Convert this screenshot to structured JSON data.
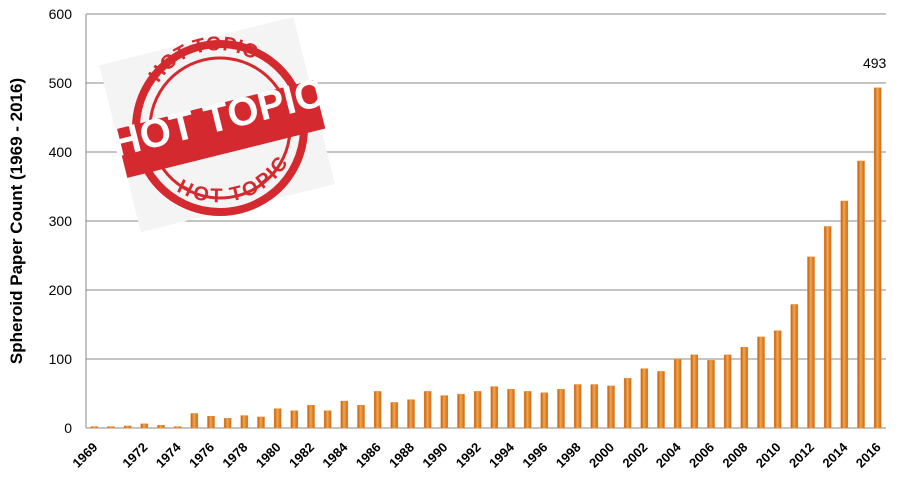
{
  "chart_data": {
    "type": "bar",
    "y_label": "Spheroid Paper Count (1969 - 2016)",
    "categories": [
      "1969",
      null,
      null,
      "1972",
      null,
      "1974",
      null,
      "1976",
      null,
      "1978",
      null,
      "1980",
      null,
      "1982",
      null,
      "1984",
      null,
      "1986",
      null,
      "1988",
      null,
      "1990",
      null,
      "1992",
      null,
      "1994",
      null,
      "1996",
      null,
      "1998",
      null,
      "2000",
      null,
      "2002",
      null,
      "2004",
      null,
      "2006",
      null,
      "2008",
      null,
      "2010",
      null,
      "2012",
      null,
      "2014",
      null,
      "2016"
    ],
    "values": [
      2,
      2,
      3,
      6,
      4,
      2,
      21,
      17,
      14,
      18,
      16,
      28,
      25,
      33,
      25,
      39,
      33,
      53,
      37,
      41,
      53,
      47,
      49,
      53,
      60,
      56,
      53,
      51,
      56,
      63,
      63,
      61,
      72,
      86,
      82,
      100,
      106,
      98,
      106,
      117,
      132,
      141,
      179,
      248,
      292,
      329,
      387,
      493
    ],
    "value_labels": [
      null,
      null,
      null,
      null,
      null,
      null,
      null,
      null,
      null,
      null,
      null,
      null,
      null,
      null,
      null,
      null,
      null,
      null,
      null,
      null,
      null,
      null,
      null,
      null,
      null,
      null,
      null,
      null,
      null,
      null,
      null,
      null,
      null,
      null,
      null,
      null,
      null,
      null,
      null,
      null,
      null,
      null,
      null,
      null,
      null,
      null,
      null,
      "493"
    ],
    "color": "#e8892c",
    "ylim": [
      0,
      600
    ],
    "yticks": [
      0,
      100,
      200,
      300,
      400,
      500,
      600
    ],
    "grid": true,
    "stamp": {
      "top": "HOT TOPIC",
      "center": "HOT TOPIC",
      "bottom": "HOT TOPIC"
    }
  }
}
